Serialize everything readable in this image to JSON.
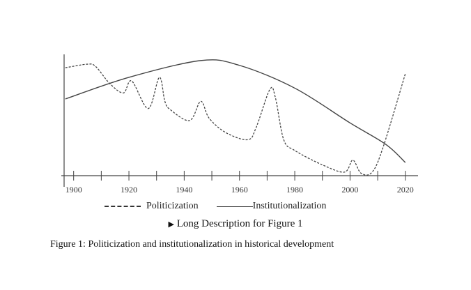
{
  "chart_data": {
    "type": "line",
    "title": "",
    "xlabel": "",
    "ylabel": "",
    "xlim": [
      1897,
      2021
    ],
    "ylim": [
      0,
      100
    ],
    "xticks": [
      1900,
      1920,
      1940,
      1960,
      1980,
      2000,
      2020
    ],
    "minor_xticks": [
      1910,
      1930,
      1950,
      1970,
      1990,
      2010
    ],
    "series": [
      {
        "name": "Politicization",
        "style": "dashed",
        "x": [
          1897,
          1905,
          1908,
          1913,
          1918,
          1921,
          1927,
          1931,
          1933,
          1935,
          1942,
          1946,
          1949,
          1955,
          1963,
          1966,
          1971,
          1973,
          1976,
          1980,
          1990,
          1998,
          2001,
          2004,
          2008,
          2012,
          2020
        ],
        "y": [
          90,
          93,
          91,
          77,
          69,
          79,
          56,
          82,
          62,
          55,
          46,
          62,
          48,
          36,
          30,
          40,
          72,
          65,
          30,
          21,
          9,
          3,
          13,
          2,
          3,
          24,
          85
        ]
      },
      {
        "name": "Institutionalization",
        "style": "solid",
        "x": [
          1897,
          1920,
          1946,
          1960,
          1980,
          2000,
          2013,
          2020
        ],
        "y": [
          64,
          82,
          96,
          92,
          73,
          44,
          26,
          11
        ]
      }
    ],
    "legend_position": "bottom"
  },
  "legend": {
    "politicization": "Politicization",
    "institutionalization": "Institutionalization"
  },
  "long_description": "Long Description for Figure 1",
  "caption": "Figure 1: Politicization and institutionalization in historical development"
}
